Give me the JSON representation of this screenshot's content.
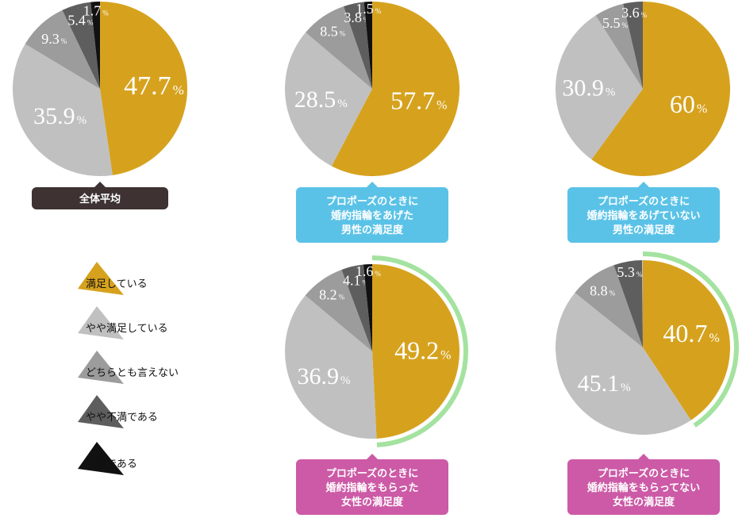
{
  "colors": {
    "satisfied": "#d6a21e",
    "somewhat_satisfied": "#c0c0c0",
    "neutral": "#9c9c9c",
    "somewhat_unsatisfied": "#5e5e5e",
    "unsatisfied": "#111111",
    "caption_dark": "#3e3232",
    "caption_blue": "#5bc2e7",
    "caption_pink": "#cc5aa6",
    "highlight_arc": "#a4e2a0"
  },
  "legend": [
    {
      "key": "satisfied",
      "label": "満足している"
    },
    {
      "key": "somewhat_satisfied",
      "label": "やや満足している"
    },
    {
      "key": "neutral",
      "label": "どちらとも言えない"
    },
    {
      "key": "somewhat_unsatisfied",
      "label": "やや不満である"
    },
    {
      "key": "unsatisfied",
      "label": "不満である"
    }
  ],
  "pct_symbol": "%",
  "chart_data": [
    {
      "type": "pie",
      "caption": [
        "全体平均"
      ],
      "caption_color": "caption_dark",
      "highlight": false,
      "slices": [
        {
          "key": "satisfied",
          "value": 47.7,
          "label": "47.7"
        },
        {
          "key": "somewhat_satisfied",
          "value": 35.9,
          "label": "35.9"
        },
        {
          "key": "neutral",
          "value": 9.3,
          "label": "9.3"
        },
        {
          "key": "somewhat_unsatisfied",
          "value": 5.4,
          "label": "5.4"
        },
        {
          "key": "unsatisfied",
          "value": 1.7,
          "label": "1.7"
        }
      ]
    },
    {
      "type": "pie",
      "caption": [
        "プロポーズのときに",
        "婚約指輪をあげた",
        "男性の満足度"
      ],
      "caption_color": "caption_blue",
      "highlight": false,
      "slices": [
        {
          "key": "satisfied",
          "value": 57.7,
          "label": "57.7"
        },
        {
          "key": "somewhat_satisfied",
          "value": 28.5,
          "label": "28.5"
        },
        {
          "key": "neutral",
          "value": 8.5,
          "label": "8.5"
        },
        {
          "key": "somewhat_unsatisfied",
          "value": 3.8,
          "label": "3.8"
        },
        {
          "key": "unsatisfied",
          "value": 1.5,
          "label": "1.5"
        }
      ]
    },
    {
      "type": "pie",
      "caption": [
        "プロポーズのときに",
        "婚約指輪をあげていない",
        "男性の満足度"
      ],
      "caption_color": "caption_blue",
      "highlight": false,
      "slices": [
        {
          "key": "satisfied",
          "value": 60,
          "label": "60"
        },
        {
          "key": "somewhat_satisfied",
          "value": 30.9,
          "label": "30.9"
        },
        {
          "key": "neutral",
          "value": 5.5,
          "label": "5.5"
        },
        {
          "key": "somewhat_unsatisfied",
          "value": 3.6,
          "label": "3.6"
        }
      ]
    },
    {
      "type": "pie",
      "caption": [
        "プロポーズのときに",
        "婚約指輪をもらった",
        "女性の満足度"
      ],
      "caption_color": "caption_pink",
      "highlight": true,
      "slices": [
        {
          "key": "satisfied",
          "value": 49.2,
          "label": "49.2"
        },
        {
          "key": "somewhat_satisfied",
          "value": 36.9,
          "label": "36.9"
        },
        {
          "key": "neutral",
          "value": 8.2,
          "label": "8.2"
        },
        {
          "key": "somewhat_unsatisfied",
          "value": 4.1,
          "label": "4.1"
        },
        {
          "key": "unsatisfied",
          "value": 1.6,
          "label": "1.6"
        }
      ]
    },
    {
      "type": "pie",
      "caption": [
        "プロポーズのときに",
        "婚約指輪をもらってない",
        "女性の満足度"
      ],
      "caption_color": "caption_pink",
      "highlight": true,
      "slices": [
        {
          "key": "satisfied",
          "value": 40.7,
          "label": "40.7"
        },
        {
          "key": "somewhat_satisfied",
          "value": 45.1,
          "label": "45.1"
        },
        {
          "key": "neutral",
          "value": 8.8,
          "label": "8.8"
        },
        {
          "key": "somewhat_unsatisfied",
          "value": 5.3,
          "label": "5.3"
        }
      ]
    }
  ]
}
